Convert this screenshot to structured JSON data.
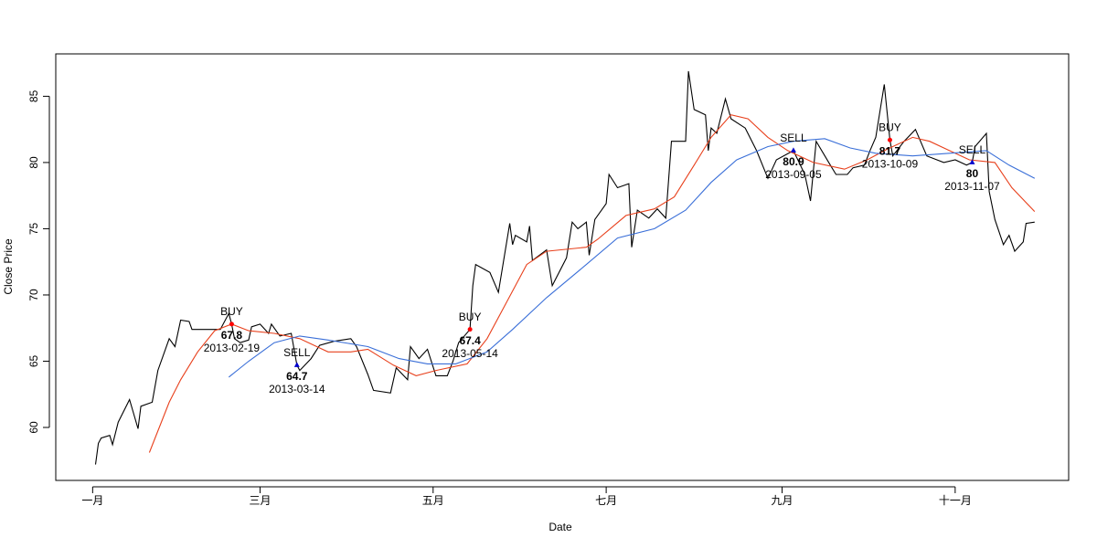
{
  "chart_data": {
    "type": "line",
    "x_label": "Date",
    "y_label": "Close Price",
    "xlim": [
      "2012-12-19",
      "2013-12-11"
    ],
    "ylim": [
      56.0,
      88.2
    ],
    "xticks": [
      {
        "value": "2013-01-01",
        "label": "一月"
      },
      {
        "value": "2013-03-01",
        "label": "三月"
      },
      {
        "value": "2013-05-01",
        "label": "五月"
      },
      {
        "value": "2013-07-01",
        "label": "七月"
      },
      {
        "value": "2013-09-01",
        "label": "九月"
      },
      {
        "value": "2013-11-01",
        "label": "十一月"
      }
    ],
    "yticks": [
      60,
      65,
      70,
      75,
      80,
      85
    ],
    "series": [
      {
        "color": "#000000",
        "x": [
          "2013-01-02",
          "2013-01-03",
          "2013-01-04",
          "2013-01-07",
          "2013-01-08",
          "2013-01-10",
          "2013-01-14",
          "2013-01-17",
          "2013-01-18",
          "2013-01-22",
          "2013-01-24",
          "2013-01-28",
          "2013-01-30",
          "2013-02-01",
          "2013-02-04",
          "2013-02-05",
          "2013-02-15",
          "2013-02-18",
          "2013-02-19",
          "2013-02-20",
          "2013-02-22",
          "2013-02-25",
          "2013-02-26",
          "2013-03-01",
          "2013-03-04",
          "2013-03-05",
          "2013-03-08",
          "2013-03-12",
          "2013-03-14",
          "2013-03-15",
          "2013-03-19",
          "2013-03-22",
          "2013-03-27",
          "2013-04-02",
          "2013-04-04",
          "2013-04-08",
          "2013-04-10",
          "2013-04-16",
          "2013-04-18",
          "2013-04-22",
          "2013-04-23",
          "2013-04-26",
          "2013-04-29",
          "2013-05-02",
          "2013-05-06",
          "2013-05-08",
          "2013-05-10",
          "2013-05-14",
          "2013-05-15",
          "2013-05-16",
          "2013-05-21",
          "2013-05-24",
          "2013-05-28",
          "2013-05-29",
          "2013-05-30",
          "2013-06-03",
          "2013-06-04",
          "2013-06-05",
          "2013-06-10",
          "2013-06-12",
          "2013-06-17",
          "2013-06-19",
          "2013-06-21",
          "2013-06-24",
          "2013-06-25",
          "2013-06-27",
          "2013-07-01",
          "2013-07-02",
          "2013-07-05",
          "2013-07-09",
          "2013-07-10",
          "2013-07-12",
          "2013-07-16",
          "2013-07-19",
          "2013-07-22",
          "2013-07-24",
          "2013-07-29",
          "2013-07-30",
          "2013-08-01",
          "2013-08-05",
          "2013-08-06",
          "2013-08-07",
          "2013-08-09",
          "2013-08-12",
          "2013-08-14",
          "2013-08-19",
          "2013-08-23",
          "2013-08-27",
          "2013-08-30",
          "2013-09-05",
          "2013-09-09",
          "2013-09-11",
          "2013-09-13",
          "2013-09-18",
          "2013-09-20",
          "2013-09-24",
          "2013-09-26",
          "2013-09-30",
          "2013-10-02",
          "2013-10-04",
          "2013-10-07",
          "2013-10-09",
          "2013-10-10",
          "2013-10-14",
          "2013-10-18",
          "2013-10-22",
          "2013-10-28",
          "2013-11-01",
          "2013-11-05",
          "2013-11-07",
          "2013-11-08",
          "2013-11-12",
          "2013-11-13",
          "2013-11-15",
          "2013-11-18",
          "2013-11-20",
          "2013-11-22",
          "2013-11-25",
          "2013-11-26",
          "2013-11-29"
        ],
        "values": [
          57.2,
          58.8,
          59.2,
          59.4,
          58.7,
          60.4,
          62.1,
          59.9,
          61.6,
          61.9,
          64.3,
          66.7,
          66.1,
          68.1,
          68.0,
          67.4,
          67.4,
          68.6,
          67.8,
          66.7,
          66.4,
          66.6,
          67.6,
          67.8,
          67.1,
          67.8,
          66.9,
          67.1,
          64.7,
          64.3,
          65.2,
          66.2,
          66.5,
          66.7,
          66.1,
          64.0,
          62.8,
          62.6,
          64.5,
          63.6,
          66.1,
          65.2,
          65.9,
          63.9,
          63.9,
          65.0,
          66.4,
          67.4,
          70.7,
          72.3,
          71.7,
          70.2,
          75.4,
          73.8,
          74.5,
          74.0,
          75.2,
          72.6,
          73.4,
          70.7,
          72.8,
          75.5,
          75.0,
          75.5,
          73.0,
          75.7,
          76.9,
          79.1,
          78.1,
          78.4,
          73.6,
          76.4,
          75.8,
          76.5,
          75.8,
          81.6,
          81.6,
          86.9,
          84.0,
          83.6,
          80.9,
          82.6,
          82.2,
          84.8,
          83.3,
          82.6,
          80.9,
          78.8,
          80.2,
          80.9,
          79.1,
          77.1,
          81.6,
          79.8,
          79.1,
          79.1,
          79.6,
          79.8,
          80.9,
          81.9,
          85.9,
          81.7,
          80.5,
          81.6,
          82.5,
          80.5,
          80.0,
          80.2,
          79.8,
          80,
          81.2,
          82.2,
          77.8,
          75.7,
          73.8,
          74.5,
          73.3,
          74.0,
          75.4,
          75.5
        ]
      },
      {
        "color": "#e8401c",
        "x": [
          "2013-01-21",
          "2013-01-28",
          "2013-02-01",
          "2013-02-07",
          "2013-02-13",
          "2013-02-19",
          "2013-02-25",
          "2013-03-06",
          "2013-03-15",
          "2013-03-25",
          "2013-04-02",
          "2013-04-08",
          "2013-04-17",
          "2013-04-25",
          "2013-05-02",
          "2013-05-13",
          "2013-05-20",
          "2013-05-27",
          "2013-06-03",
          "2013-06-10",
          "2013-06-24",
          "2013-06-28",
          "2013-07-08",
          "2013-07-18",
          "2013-07-25",
          "2013-08-01",
          "2013-08-07",
          "2013-08-14",
          "2013-08-20",
          "2013-08-27",
          "2013-09-03",
          "2013-09-12",
          "2013-09-23",
          "2013-10-01",
          "2013-10-08",
          "2013-10-17",
          "2013-10-23",
          "2013-10-30",
          "2013-11-06",
          "2013-11-15",
          "2013-11-21",
          "2013-11-29"
        ],
        "values": [
          58.1,
          61.9,
          63.6,
          65.7,
          67.3,
          67.8,
          67.3,
          67.1,
          66.7,
          65.7,
          65.7,
          65.9,
          64.7,
          63.9,
          64.3,
          64.8,
          66.7,
          69.5,
          72.3,
          73.3,
          73.6,
          74.2,
          76.0,
          76.5,
          77.4,
          79.8,
          81.9,
          83.6,
          83.3,
          81.9,
          80.9,
          80.0,
          79.5,
          80.2,
          81.0,
          81.9,
          81.6,
          80.9,
          80.2,
          80.0,
          78.1,
          76.3
        ]
      },
      {
        "color": "#3a6fd8",
        "x": [
          "2013-02-18",
          "2013-02-25",
          "2013-03-06",
          "2013-03-15",
          "2013-03-25",
          "2013-04-08",
          "2013-04-19",
          "2013-04-29",
          "2013-05-09",
          "2013-05-20",
          "2013-05-29",
          "2013-06-10",
          "2013-06-24",
          "2013-07-05",
          "2013-07-18",
          "2013-07-29",
          "2013-08-07",
          "2013-08-16",
          "2013-08-27",
          "2013-09-05",
          "2013-09-16",
          "2013-09-25",
          "2013-10-04",
          "2013-10-17",
          "2013-10-30",
          "2013-11-12",
          "2013-11-20",
          "2013-11-29"
        ],
        "values": [
          63.8,
          65.0,
          66.4,
          66.9,
          66.6,
          66.1,
          65.2,
          64.8,
          64.8,
          65.7,
          67.4,
          69.8,
          72.3,
          74.3,
          75.0,
          76.4,
          78.5,
          80.2,
          81.2,
          81.6,
          81.8,
          81.1,
          80.7,
          80.5,
          80.7,
          80.9,
          79.8,
          78.8
        ]
      }
    ],
    "annotations": [
      {
        "text": "BUY",
        "x": "2013-02-19",
        "y": 67.8,
        "color": "#ff0000",
        "marker": "circle"
      },
      {
        "text": "SELL",
        "x": "2013-03-14",
        "y": 64.7,
        "color": "#0000cc",
        "marker": "triangle"
      },
      {
        "text": "BUY",
        "x": "2013-05-14",
        "y": 67.4,
        "color": "#ff0000",
        "marker": "circle"
      },
      {
        "text": "SELL",
        "x": "2013-09-05",
        "y": 80.9,
        "color": "#0000cc",
        "marker": "triangle"
      },
      {
        "text": "BUY",
        "x": "2013-10-09",
        "y": 81.7,
        "color": "#ff0000",
        "marker": "circle"
      },
      {
        "text": "SELL",
        "x": "2013-11-07",
        "y": 80,
        "color": "#0000cc",
        "marker": "triangle"
      }
    ]
  }
}
